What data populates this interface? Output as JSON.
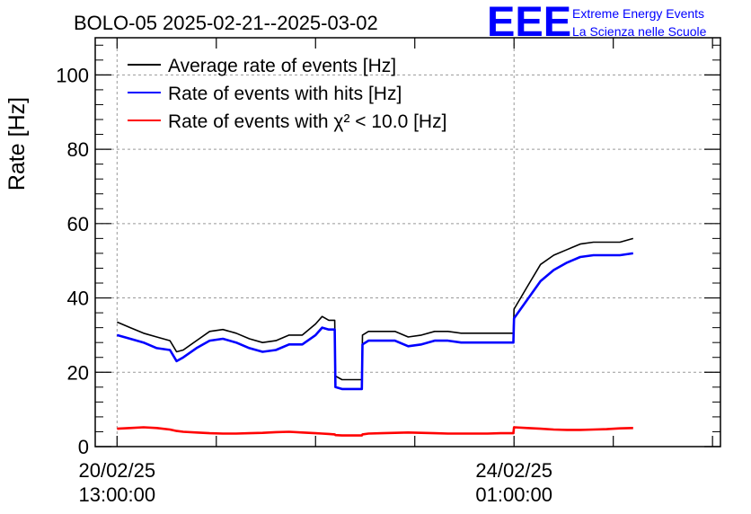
{
  "chart_data": {
    "type": "line",
    "title": "BOLO-05 2025-02-21--2025-03-02",
    "xlabel": "",
    "ylabel": "Rate [Hz]",
    "ylim": [
      0,
      110
    ],
    "yticks": [
      0,
      20,
      40,
      60,
      80,
      100
    ],
    "xlim_days": [
      -0.33,
      9.12
    ],
    "xticks": [
      {
        "day": 0,
        "date": "20/02/25",
        "time": "13:00:00"
      },
      {
        "day": 6,
        "date": "24/02/25",
        "time": "01:00:00"
      }
    ],
    "grid": true,
    "legend_position": "top-left",
    "x_days": [
      0.0,
      0.2,
      0.4,
      0.6,
      0.8,
      0.9,
      1.0,
      1.2,
      1.4,
      1.6,
      1.8,
      2.0,
      2.2,
      2.4,
      2.6,
      2.8,
      3.0,
      3.1,
      3.2,
      3.29,
      3.3,
      3.4,
      3.5,
      3.6,
      3.7,
      3.71,
      3.8,
      4.0,
      4.2,
      4.4,
      4.6,
      4.8,
      5.0,
      5.2,
      5.4,
      5.6,
      5.8,
      5.99,
      6.0,
      6.2,
      6.4,
      6.6,
      6.8,
      7.0,
      7.2,
      7.4,
      7.6,
      7.8
    ],
    "series": [
      {
        "name": "Average rate of events [Hz]",
        "color": "#000000",
        "values": [
          33.5,
          32,
          30.5,
          29.5,
          28.5,
          25.5,
          26,
          28.5,
          31,
          31.5,
          30.5,
          29,
          28,
          28.5,
          30,
          30,
          33,
          35,
          34,
          34,
          19,
          18,
          18,
          18,
          18,
          30,
          31,
          31,
          31,
          29.5,
          30,
          31,
          31,
          30.5,
          30.5,
          30.5,
          30.5,
          30.5,
          37,
          43,
          49,
          51.5,
          53,
          54.5,
          55,
          55,
          55,
          56
        ]
      },
      {
        "name": "Rate of events with hits [Hz]",
        "color": "#0000ff",
        "values": [
          30,
          29,
          28,
          26.5,
          26,
          23,
          24,
          26.5,
          28.5,
          29,
          28,
          26.5,
          25.5,
          26,
          27.5,
          27.5,
          30,
          32,
          31.5,
          31.5,
          16,
          15.5,
          15.5,
          15.5,
          15.5,
          27.5,
          28.5,
          28.5,
          28.5,
          27,
          27.5,
          28.5,
          28.5,
          28,
          28,
          28,
          28,
          28,
          34.5,
          39.5,
          44.5,
          47.5,
          49.5,
          51,
          51.5,
          51.5,
          51.5,
          52
        ]
      },
      {
        "name": "Rate of events with χ² < 10.0 [Hz]",
        "color": "#ff0000",
        "values": [
          4.8,
          5.0,
          5.2,
          5.0,
          4.6,
          4.2,
          4.0,
          3.8,
          3.6,
          3.5,
          3.5,
          3.6,
          3.7,
          3.9,
          4.0,
          3.8,
          3.6,
          3.5,
          3.4,
          3.3,
          3.1,
          3.0,
          3.0,
          3.0,
          3.0,
          3.3,
          3.5,
          3.6,
          3.7,
          3.8,
          3.7,
          3.6,
          3.5,
          3.5,
          3.5,
          3.5,
          3.6,
          3.6,
          5.2,
          5.0,
          4.8,
          4.6,
          4.5,
          4.5,
          4.6,
          4.7,
          4.9,
          5.0
        ]
      }
    ]
  },
  "logo": {
    "mark": "EEE",
    "line1": "Extreme Energy Events",
    "line2": "La Scienza nelle Scuole",
    "color": "#0000ff"
  }
}
